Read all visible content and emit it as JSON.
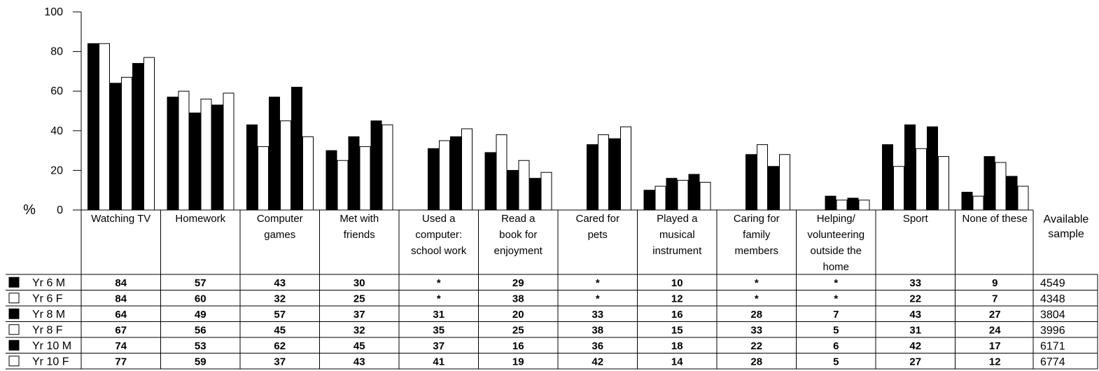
{
  "chart_data": {
    "type": "bar",
    "ylabel": "%",
    "ylim": [
      0,
      100
    ],
    "yticks": [
      "0",
      "20",
      "40",
      "60",
      "80",
      "100"
    ],
    "grid": false,
    "legend_placement": "table-left",
    "categories": [
      "Watching TV",
      "Homework",
      "Computer games",
      "Met with friends",
      "Used a computer: school work",
      "Read a book for enjoyment",
      "Cared for pets",
      "Played a musical instrument",
      "Caring for family members",
      "Helping/ volunteering outside the home",
      "Sport",
      "None of these"
    ],
    "category_label_lines": [
      [
        "Watching TV"
      ],
      [
        "Homework"
      ],
      [
        "Computer",
        "games"
      ],
      [
        "Met with",
        "friends"
      ],
      [
        "Used a",
        "computer:",
        "school work"
      ],
      [
        "Read a",
        "book for",
        "enjoyment"
      ],
      [
        "Cared for",
        "pets"
      ],
      [
        "Played a",
        "musical",
        "instrument"
      ],
      [
        "Caring for",
        "family",
        "members"
      ],
      [
        "Helping/",
        "volunteering",
        "outside the",
        "home"
      ],
      [
        "Sport"
      ],
      [
        "None of these"
      ]
    ],
    "available_sample_header": [
      "Available",
      "sample"
    ],
    "series": [
      {
        "name": "Yr 6 M",
        "fill": "#000000",
        "values": [
          84,
          57,
          43,
          30,
          null,
          29,
          null,
          10,
          null,
          null,
          33,
          9
        ],
        "display": [
          "84",
          "57",
          "43",
          "30",
          "*",
          "29",
          "*",
          "10",
          "*",
          "*",
          "33",
          "9"
        ],
        "sample": "4549"
      },
      {
        "name": "Yr 6 F",
        "fill": "#ffffff",
        "values": [
          84,
          60,
          32,
          25,
          null,
          38,
          null,
          12,
          null,
          null,
          22,
          7
        ],
        "display": [
          "84",
          "60",
          "32",
          "25",
          "*",
          "38",
          "*",
          "12",
          "*",
          "*",
          "22",
          "7"
        ],
        "sample": "4348"
      },
      {
        "name": "Yr 8 M",
        "fill": "#000000",
        "values": [
          64,
          49,
          57,
          37,
          31,
          20,
          33,
          16,
          28,
          7,
          43,
          27
        ],
        "display": [
          "64",
          "49",
          "57",
          "37",
          "31",
          "20",
          "33",
          "16",
          "28",
          "7",
          "43",
          "27"
        ],
        "sample": "3804"
      },
      {
        "name": "Yr 8 F",
        "fill": "#ffffff",
        "values": [
          67,
          56,
          45,
          32,
          35,
          25,
          38,
          15,
          33,
          5,
          31,
          24
        ],
        "display": [
          "67",
          "56",
          "45",
          "32",
          "35",
          "25",
          "38",
          "15",
          "33",
          "5",
          "31",
          "24"
        ],
        "sample": "3996"
      },
      {
        "name": "Yr 10 M",
        "fill": "#000000",
        "values": [
          74,
          53,
          62,
          45,
          37,
          16,
          36,
          18,
          22,
          6,
          42,
          17
        ],
        "display": [
          "74",
          "53",
          "62",
          "45",
          "37",
          "16",
          "36",
          "18",
          "22",
          "6",
          "42",
          "17"
        ],
        "sample": "6171"
      },
      {
        "name": "Yr 10 F",
        "fill": "#ffffff",
        "values": [
          77,
          59,
          37,
          43,
          41,
          19,
          42,
          14,
          28,
          5,
          27,
          12
        ],
        "display": [
          "77",
          "59",
          "37",
          "43",
          "41",
          "19",
          "42",
          "14",
          "28",
          "5",
          "27",
          "12"
        ],
        "sample": "6774"
      }
    ]
  }
}
